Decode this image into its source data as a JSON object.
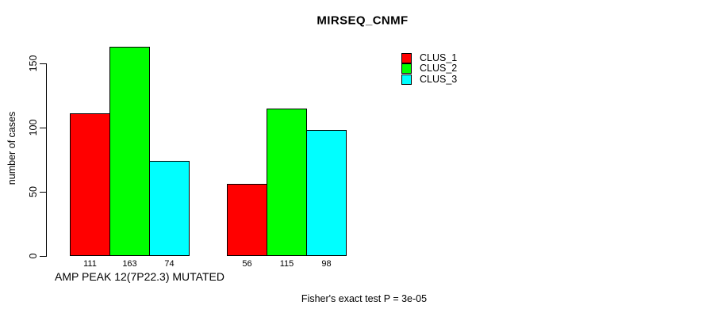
{
  "chart_data": {
    "type": "bar",
    "title": "MIRSEQ_CNMF",
    "ylabel": "number of cases",
    "xlabel": "",
    "categories": [
      "AMP PEAK 12(7P22.3) MUTATED",
      ""
    ],
    "series": [
      {
        "name": "CLUS_1",
        "color": "#ff0000",
        "values": [
          111,
          56
        ]
      },
      {
        "name": "CLUS_2",
        "color": "#00ff00",
        "values": [
          163,
          115
        ]
      },
      {
        "name": "CLUS_3",
        "color": "#00ffff",
        "values": [
          74,
          98
        ]
      }
    ],
    "yticks": [
      0,
      50,
      100,
      150
    ],
    "ylim": [
      0,
      165
    ],
    "bar_labels_shown": true,
    "grid": false,
    "legend": {
      "position": "top-right",
      "entries": [
        "CLUS_1",
        "CLUS_2",
        "CLUS_3"
      ]
    },
    "annotation": "Fisher's exact test P = 3e-05"
  }
}
